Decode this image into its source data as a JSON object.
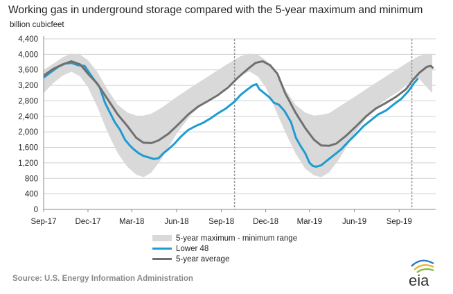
{
  "chart_data": {
    "type": "area",
    "title": "Working gas in underground  storage compared with the 5-year maximum and minimum",
    "ylabel": "billion cubicfeet",
    "xlabel": "",
    "ylim": [
      0,
      4400
    ],
    "y_ticks": [
      "4,400",
      "4,000",
      "3,600",
      "3,200",
      "2,800",
      "2,400",
      "2,000",
      "1,600",
      "1,200",
      "800",
      "400",
      "0"
    ],
    "x_ticks": [
      "Sep-17",
      "Dec-17",
      "Mar-18",
      "Jun-18",
      "Sep-18",
      "Dec-18",
      "Mar-19",
      "Jun-19",
      "Sep-19"
    ],
    "x_tick_dates": [
      "2017-09-01",
      "2017-12-01",
      "2018-03-01",
      "2018-06-01",
      "2018-09-01",
      "2018-12-01",
      "2019-03-01",
      "2019-06-01",
      "2019-09-01"
    ],
    "x_range": [
      "2017-09-01",
      "2019-11-15"
    ],
    "grid": "horizontal",
    "vertical_markers": [
      "2018-09-28",
      "2019-09-27"
    ],
    "colors": {
      "band": "#d9d9d9",
      "lower48": "#1f9bd1",
      "average": "#707070",
      "grid": "#d0d0d0",
      "marker": "#999999"
    },
    "series": [
      {
        "name": "5-year maximum - minimum range",
        "kind": "band",
        "points": [
          {
            "x": "2017-09-01",
            "lo": 3000,
            "hi": 3600
          },
          {
            "x": "2017-09-20",
            "lo": 3250,
            "hi": 3750
          },
          {
            "x": "2017-10-10",
            "lo": 3450,
            "hi": 3920
          },
          {
            "x": "2017-10-28",
            "lo": 3550,
            "hi": 4020
          },
          {
            "x": "2017-11-15",
            "lo": 3430,
            "hi": 3990
          },
          {
            "x": "2017-12-01",
            "lo": 3150,
            "hi": 3850
          },
          {
            "x": "2017-12-20",
            "lo": 2650,
            "hi": 3550
          },
          {
            "x": "2018-01-10",
            "lo": 2000,
            "hi": 3100
          },
          {
            "x": "2018-01-31",
            "lo": 1450,
            "hi": 2700
          },
          {
            "x": "2018-02-20",
            "lo": 1100,
            "hi": 2500
          },
          {
            "x": "2018-03-10",
            "lo": 900,
            "hi": 2420
          },
          {
            "x": "2018-03-25",
            "lo": 830,
            "hi": 2420
          },
          {
            "x": "2018-04-10",
            "lo": 950,
            "hi": 2470
          },
          {
            "x": "2018-05-01",
            "lo": 1300,
            "hi": 2620
          },
          {
            "x": "2018-06-01",
            "lo": 1950,
            "hi": 2900
          },
          {
            "x": "2018-07-01",
            "lo": 2450,
            "hi": 3150
          },
          {
            "x": "2018-08-01",
            "lo": 2800,
            "hi": 3400
          },
          {
            "x": "2018-09-01",
            "lo": 3050,
            "hi": 3650
          },
          {
            "x": "2018-09-20",
            "lo": 3250,
            "hi": 3800
          },
          {
            "x": "2018-10-10",
            "lo": 3450,
            "hi": 3950
          },
          {
            "x": "2018-10-28",
            "lo": 3560,
            "hi": 4020
          },
          {
            "x": "2018-11-15",
            "lo": 3430,
            "hi": 3990
          },
          {
            "x": "2018-12-01",
            "lo": 3150,
            "hi": 3850
          },
          {
            "x": "2018-12-20",
            "lo": 2600,
            "hi": 3550
          },
          {
            "x": "2019-01-10",
            "lo": 2000,
            "hi": 3100
          },
          {
            "x": "2019-01-31",
            "lo": 1450,
            "hi": 2700
          },
          {
            "x": "2019-02-20",
            "lo": 1050,
            "hi": 2500
          },
          {
            "x": "2019-03-10",
            "lo": 880,
            "hi": 2420
          },
          {
            "x": "2019-03-25",
            "lo": 830,
            "hi": 2440
          },
          {
            "x": "2019-04-10",
            "lo": 950,
            "hi": 2480
          },
          {
            "x": "2019-05-01",
            "lo": 1300,
            "hi": 2650
          },
          {
            "x": "2019-06-01",
            "lo": 1950,
            "hi": 2900
          },
          {
            "x": "2019-07-01",
            "lo": 2450,
            "hi": 3150
          },
          {
            "x": "2019-08-01",
            "lo": 2800,
            "hi": 3400
          },
          {
            "x": "2019-09-01",
            "lo": 3050,
            "hi": 3650
          },
          {
            "x": "2019-09-20",
            "lo": 3250,
            "hi": 3800
          },
          {
            "x": "2019-10-10",
            "lo": 3400,
            "hi": 3950
          },
          {
            "x": "2019-10-28",
            "lo": 3150,
            "hi": 4020
          },
          {
            "x": "2019-11-08",
            "lo": 3000,
            "hi": 3980
          }
        ]
      },
      {
        "name": "Lower 48",
        "kind": "line",
        "points": [
          [
            "2017-09-01",
            3400
          ],
          [
            "2017-09-15",
            3530
          ],
          [
            "2017-10-01",
            3680
          ],
          [
            "2017-10-15",
            3760
          ],
          [
            "2017-10-28",
            3780
          ],
          [
            "2017-11-10",
            3720
          ],
          [
            "2017-11-24",
            3700
          ],
          [
            "2017-12-05",
            3500
          ],
          [
            "2017-12-15",
            3320
          ],
          [
            "2017-12-25",
            3150
          ],
          [
            "2018-01-05",
            2750
          ],
          [
            "2018-01-15",
            2500
          ],
          [
            "2018-01-25",
            2250
          ],
          [
            "2018-02-05",
            2050
          ],
          [
            "2018-02-15",
            1800
          ],
          [
            "2018-02-25",
            1650
          ],
          [
            "2018-03-05",
            1550
          ],
          [
            "2018-03-15",
            1450
          ],
          [
            "2018-03-25",
            1380
          ],
          [
            "2018-04-05",
            1340
          ],
          [
            "2018-04-15",
            1300
          ],
          [
            "2018-04-25",
            1320
          ],
          [
            "2018-05-05",
            1450
          ],
          [
            "2018-05-15",
            1550
          ],
          [
            "2018-05-28",
            1700
          ],
          [
            "2018-06-10",
            1880
          ],
          [
            "2018-06-25",
            2050
          ],
          [
            "2018-07-10",
            2150
          ],
          [
            "2018-07-25",
            2230
          ],
          [
            "2018-08-10",
            2350
          ],
          [
            "2018-08-25",
            2480
          ],
          [
            "2018-09-10",
            2600
          ],
          [
            "2018-09-28",
            2780
          ],
          [
            "2018-10-10",
            2950
          ],
          [
            "2018-10-25",
            3100
          ],
          [
            "2018-11-05",
            3200
          ],
          [
            "2018-11-12",
            3230
          ],
          [
            "2018-11-18",
            3100
          ],
          [
            "2018-11-28",
            3000
          ],
          [
            "2018-12-08",
            2900
          ],
          [
            "2018-12-18",
            2750
          ],
          [
            "2018-12-28",
            2700
          ],
          [
            "2019-01-08",
            2550
          ],
          [
            "2019-01-15",
            2400
          ],
          [
            "2019-01-22",
            2250
          ],
          [
            "2019-02-01",
            1850
          ],
          [
            "2019-02-10",
            1650
          ],
          [
            "2019-02-20",
            1450
          ],
          [
            "2019-03-01",
            1200
          ],
          [
            "2019-03-08",
            1120
          ],
          [
            "2019-03-15",
            1100
          ],
          [
            "2019-03-25",
            1140
          ],
          [
            "2019-04-05",
            1250
          ],
          [
            "2019-04-20",
            1400
          ],
          [
            "2019-05-05",
            1550
          ],
          [
            "2019-05-20",
            1750
          ],
          [
            "2019-06-05",
            1950
          ],
          [
            "2019-06-20",
            2150
          ],
          [
            "2019-07-05",
            2300
          ],
          [
            "2019-07-20",
            2450
          ],
          [
            "2019-08-05",
            2550
          ],
          [
            "2019-08-20",
            2700
          ],
          [
            "2019-09-05",
            2850
          ],
          [
            "2019-09-20",
            3050
          ],
          [
            "2019-10-01",
            3250
          ],
          [
            "2019-10-10",
            3380
          ]
        ]
      },
      {
        "name": "5-year average",
        "kind": "line",
        "points": [
          [
            "2017-09-01",
            3450
          ],
          [
            "2017-09-20",
            3620
          ],
          [
            "2017-10-10",
            3740
          ],
          [
            "2017-10-28",
            3820
          ],
          [
            "2017-11-15",
            3740
          ],
          [
            "2017-12-01",
            3500
          ],
          [
            "2017-12-20",
            3250
          ],
          [
            "2018-01-10",
            2850
          ],
          [
            "2018-01-31",
            2450
          ],
          [
            "2018-02-20",
            2150
          ],
          [
            "2018-03-10",
            1850
          ],
          [
            "2018-03-25",
            1720
          ],
          [
            "2018-04-10",
            1710
          ],
          [
            "2018-04-25",
            1780
          ],
          [
            "2018-05-15",
            1950
          ],
          [
            "2018-06-05",
            2200
          ],
          [
            "2018-06-25",
            2450
          ],
          [
            "2018-07-15",
            2650
          ],
          [
            "2018-08-05",
            2800
          ],
          [
            "2018-08-25",
            2950
          ],
          [
            "2018-09-15",
            3150
          ],
          [
            "2018-10-05",
            3400
          ],
          [
            "2018-10-25",
            3620
          ],
          [
            "2018-11-10",
            3780
          ],
          [
            "2018-11-25",
            3820
          ],
          [
            "2018-12-10",
            3720
          ],
          [
            "2018-12-25",
            3500
          ],
          [
            "2019-01-10",
            3000
          ],
          [
            "2019-01-31",
            2500
          ],
          [
            "2019-02-20",
            2100
          ],
          [
            "2019-03-10",
            1800
          ],
          [
            "2019-03-25",
            1650
          ],
          [
            "2019-04-10",
            1640
          ],
          [
            "2019-04-25",
            1700
          ],
          [
            "2019-05-15",
            1900
          ],
          [
            "2019-06-05",
            2150
          ],
          [
            "2019-06-25",
            2400
          ],
          [
            "2019-07-15",
            2600
          ],
          [
            "2019-08-05",
            2750
          ],
          [
            "2019-08-25",
            2900
          ],
          [
            "2019-09-15",
            3100
          ],
          [
            "2019-09-30",
            3350
          ],
          [
            "2019-10-12",
            3520
          ],
          [
            "2019-10-28",
            3680
          ],
          [
            "2019-11-05",
            3700
          ],
          [
            "2019-11-10",
            3640
          ]
        ]
      }
    ]
  },
  "legend": {
    "band_label": "5-year maximum - minimum range",
    "lower48_label": "Lower 48",
    "average_label": "5-year average"
  },
  "source": "Source:  U.S. Energy Information Administration",
  "logo_text": "eia"
}
